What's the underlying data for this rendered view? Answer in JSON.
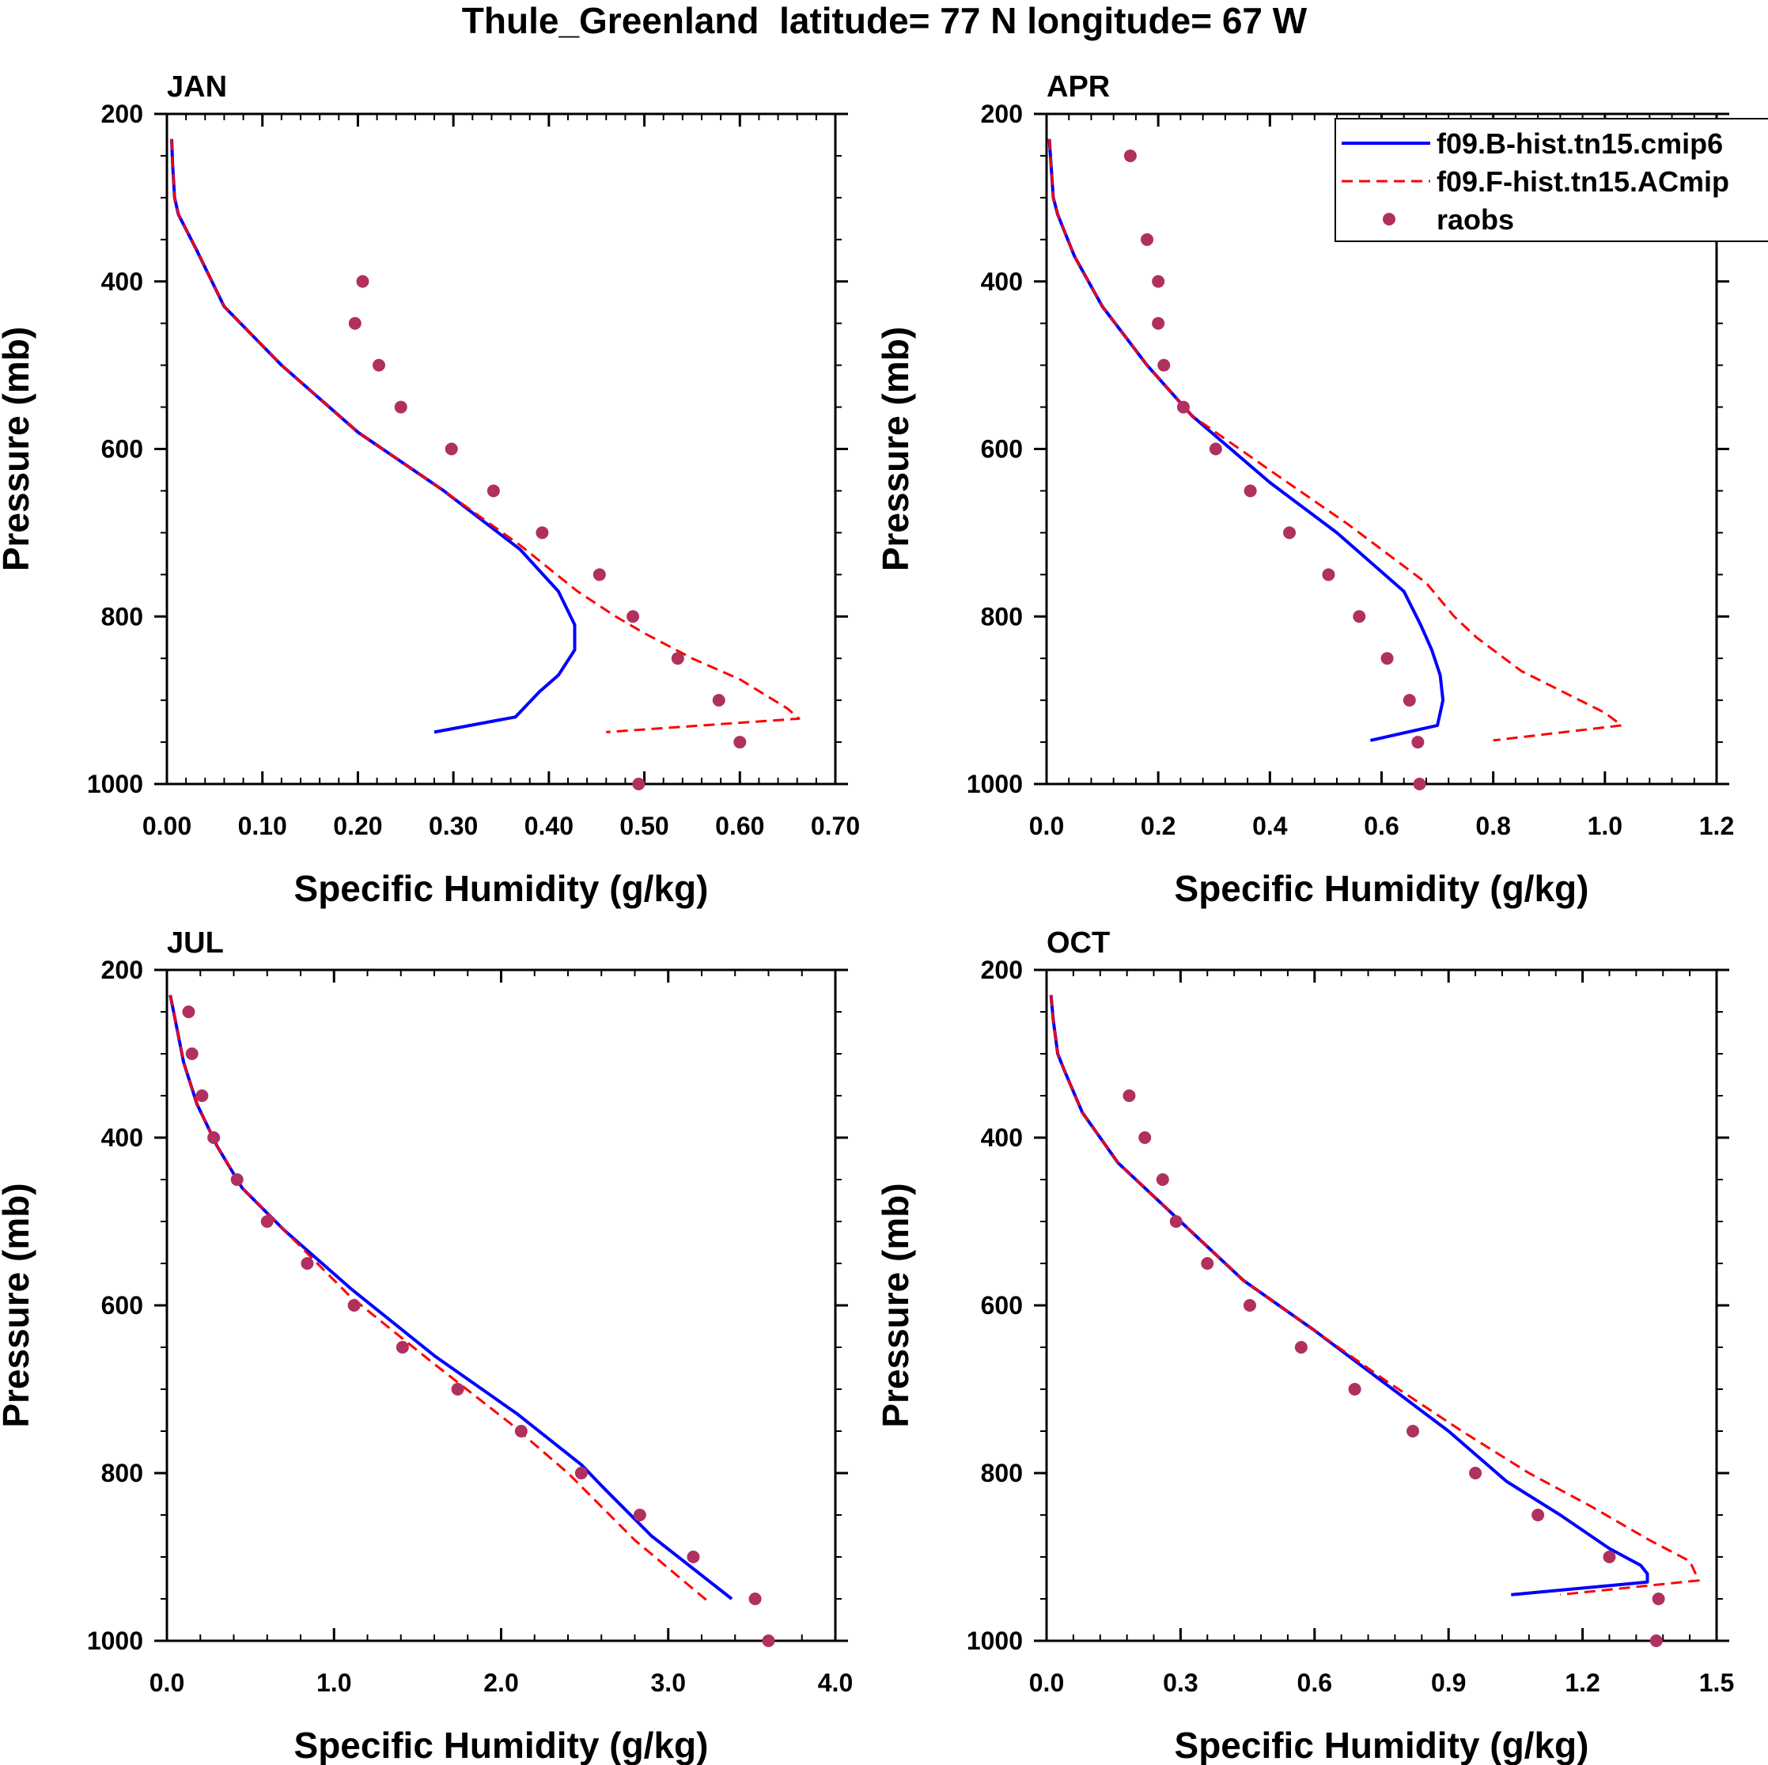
{
  "figure_title": "Thule_Greenland  latitude= 77 N longitude= 67 W",
  "legend": {
    "entries": [
      {
        "label": "f09.B-hist.tn15.cmip6",
        "style": "line",
        "color": "#0000ff"
      },
      {
        "label": "f09.F-hist.tn15.ACmip",
        "style": "dashed",
        "color": "#ff0000"
      },
      {
        "label": "raobs",
        "style": "marker",
        "color": "#b03060"
      }
    ]
  },
  "colors": {
    "model_b": "#0000ff",
    "model_f": "#ff0000",
    "raobs": "#b03060",
    "axis": "#000000"
  },
  "chart_data": [
    {
      "type": "line",
      "title": "JAN",
      "xlabel": "Specific Humidity (g/kg)",
      "ylabel": "Pressure (mb)",
      "xlim": [
        0,
        0.7
      ],
      "ylim": [
        1000,
        200
      ],
      "xticks": [
        "0.00",
        "0.10",
        "0.20",
        "0.30",
        "0.40",
        "0.50",
        "0.60",
        "0.70"
      ],
      "yticks": [
        "200",
        "400",
        "600",
        "800",
        "1000"
      ],
      "series": [
        {
          "name": "f09.B-hist.tn15.cmip6",
          "x": [
            0.005,
            0.006,
            0.008,
            0.012,
            0.03,
            0.06,
            0.12,
            0.2,
            0.29,
            0.37,
            0.41,
            0.427,
            0.427,
            0.41,
            0.39,
            0.365,
            0.28
          ],
          "y": [
            230,
            260,
            300,
            320,
            360,
            430,
            500,
            580,
            650,
            720,
            770,
            810,
            840,
            870,
            890,
            920,
            938
          ]
        },
        {
          "name": "f09.F-hist.tn15.ACmip",
          "x": [
            0.005,
            0.006,
            0.008,
            0.012,
            0.03,
            0.06,
            0.12,
            0.2,
            0.29,
            0.37,
            0.43,
            0.47,
            0.5,
            0.55,
            0.6,
            0.65,
            0.662,
            0.46
          ],
          "y": [
            230,
            260,
            300,
            320,
            360,
            430,
            500,
            580,
            650,
            715,
            770,
            800,
            820,
            850,
            875,
            910,
            922,
            938
          ]
        },
        {
          "name": "raobs",
          "x": [
            0.205,
            0.197,
            0.222,
            0.245,
            0.298,
            0.342,
            0.393,
            0.453,
            0.488,
            0.535,
            0.578,
            0.6,
            0.494
          ],
          "y": [
            400,
            450,
            500,
            550,
            600,
            650,
            700,
            750,
            800,
            850,
            900,
            950,
            1000
          ]
        }
      ]
    },
    {
      "type": "line",
      "title": "APR",
      "xlabel": "Specific Humidity (g/kg)",
      "ylabel": "Pressure (mb)",
      "xlim": [
        0,
        1.2
      ],
      "ylim": [
        1000,
        200
      ],
      "xticks": [
        "0.0",
        "0.2",
        "0.4",
        "0.6",
        "0.8",
        "1.0",
        "1.2"
      ],
      "yticks": [
        "200",
        "400",
        "600",
        "800",
        "1000"
      ],
      "series": [
        {
          "name": "f09.B-hist.tn15.cmip6",
          "x": [
            0.005,
            0.008,
            0.012,
            0.02,
            0.05,
            0.1,
            0.18,
            0.26,
            0.4,
            0.52,
            0.64,
            0.67,
            0.69,
            0.705,
            0.71,
            0.7,
            0.58
          ],
          "y": [
            230,
            260,
            300,
            320,
            370,
            430,
            500,
            560,
            640,
            700,
            770,
            810,
            840,
            870,
            900,
            930,
            948
          ]
        },
        {
          "name": "f09.F-hist.tn15.ACmip",
          "x": [
            0.005,
            0.008,
            0.012,
            0.02,
            0.05,
            0.1,
            0.18,
            0.26,
            0.41,
            0.54,
            0.68,
            0.73,
            0.77,
            0.85,
            1.0,
            1.03,
            0.8
          ],
          "y": [
            230,
            260,
            300,
            320,
            370,
            430,
            500,
            560,
            630,
            690,
            760,
            800,
            825,
            865,
            915,
            930,
            948
          ]
        },
        {
          "name": "raobs",
          "x": [
            0.15,
            0.18,
            0.2,
            0.2,
            0.21,
            0.245,
            0.303,
            0.365,
            0.435,
            0.505,
            0.56,
            0.61,
            0.65,
            0.665,
            0.668
          ],
          "y": [
            250,
            350,
            400,
            450,
            500,
            550,
            600,
            650,
            700,
            750,
            800,
            850,
            900,
            950,
            1000
          ]
        }
      ]
    },
    {
      "type": "line",
      "title": "JUL",
      "xlabel": "Specific Humidity (g/kg)",
      "ylabel": "Pressure (mb)",
      "xlim": [
        0,
        4.0
      ],
      "ylim": [
        1000,
        200
      ],
      "xticks": [
        "0.0",
        "1.0",
        "2.0",
        "3.0",
        "4.0"
      ],
      "yticks": [
        "200",
        "400",
        "600",
        "800",
        "1000"
      ],
      "series": [
        {
          "name": "f09.B-hist.tn15.cmip6",
          "x": [
            0.02,
            0.05,
            0.1,
            0.18,
            0.3,
            0.45,
            0.7,
            1.1,
            1.6,
            2.1,
            2.48,
            2.6,
            2.9,
            3.38
          ],
          "y": [
            230,
            260,
            310,
            360,
            410,
            460,
            510,
            580,
            660,
            730,
            790,
            815,
            875,
            950
          ]
        },
        {
          "name": "f09.F-hist.tn15.ACmip",
          "x": [
            0.02,
            0.05,
            0.1,
            0.18,
            0.3,
            0.45,
            0.7,
            1.1,
            1.6,
            2.05,
            2.4,
            2.55,
            2.8,
            3.25
          ],
          "y": [
            230,
            260,
            310,
            360,
            410,
            460,
            510,
            590,
            670,
            740,
            800,
            830,
            880,
            955
          ]
        },
        {
          "name": "raobs",
          "x": [
            0.13,
            0.15,
            0.21,
            0.28,
            0.42,
            0.6,
            0.84,
            1.12,
            1.41,
            1.74,
            2.12,
            2.48,
            2.83,
            3.15,
            3.52,
            3.6
          ],
          "y": [
            250,
            300,
            350,
            400,
            450,
            500,
            550,
            600,
            650,
            700,
            750,
            800,
            850,
            900,
            950,
            1000
          ]
        }
      ]
    },
    {
      "type": "line",
      "title": "OCT",
      "xlabel": "Specific Humidity (g/kg)",
      "ylabel": "Pressure (mb)",
      "xlim": [
        0,
        1.5
      ],
      "ylim": [
        1000,
        200
      ],
      "xticks": [
        "0.0",
        "0.3",
        "0.6",
        "0.9",
        "1.2",
        "1.5"
      ],
      "yticks": [
        "200",
        "400",
        "600",
        "800",
        "1000"
      ],
      "series": [
        {
          "name": "f09.B-hist.tn15.cmip6",
          "x": [
            0.01,
            0.015,
            0.025,
            0.04,
            0.08,
            0.16,
            0.28,
            0.44,
            0.6,
            0.75,
            0.9,
            1.03,
            1.15,
            1.26,
            1.33,
            1.345,
            1.345,
            1.04
          ],
          "y": [
            230,
            260,
            300,
            320,
            370,
            430,
            490,
            570,
            630,
            690,
            750,
            810,
            850,
            890,
            910,
            920,
            930,
            945
          ]
        },
        {
          "name": "f09.F-hist.tn15.ACmip",
          "x": [
            0.01,
            0.015,
            0.025,
            0.04,
            0.08,
            0.16,
            0.28,
            0.44,
            0.6,
            0.76,
            0.93,
            1.08,
            1.22,
            1.35,
            1.44,
            1.46,
            1.15
          ],
          "y": [
            230,
            260,
            300,
            320,
            370,
            430,
            490,
            570,
            630,
            690,
            750,
            800,
            840,
            880,
            905,
            928,
            945
          ]
        },
        {
          "name": "raobs",
          "x": [
            0.185,
            0.22,
            0.26,
            0.29,
            0.36,
            0.455,
            0.57,
            0.69,
            0.82,
            0.96,
            1.1,
            1.26,
            1.37,
            1.365
          ],
          "y": [
            350,
            400,
            450,
            500,
            550,
            600,
            650,
            700,
            750,
            800,
            850,
            900,
            950,
            1000
          ]
        }
      ]
    }
  ]
}
